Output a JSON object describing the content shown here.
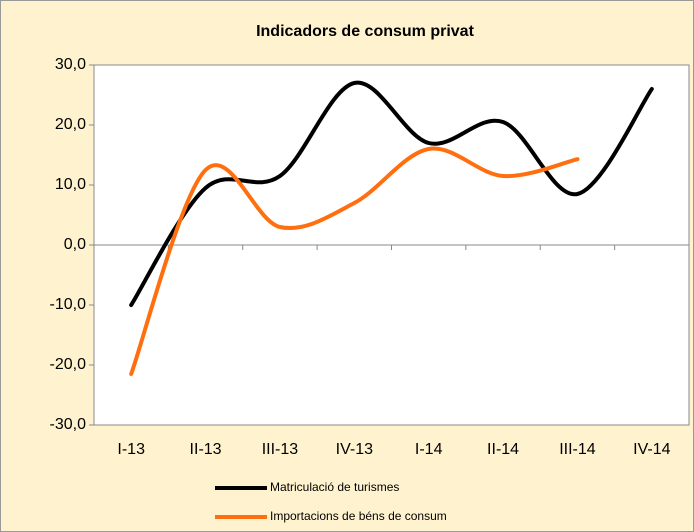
{
  "chart_data": {
    "type": "line",
    "title": "Indicadors de consum privat",
    "categories": [
      "I-13",
      "II-13",
      "III-13",
      "IV-13",
      "I-14",
      "II-14",
      "III-14",
      "IV-14"
    ],
    "series": [
      {
        "name": "Matriculació de turismes",
        "color": "#000000",
        "values": [
          -10,
          9.5,
          11.5,
          27,
          17,
          20.5,
          8.5,
          26
        ]
      },
      {
        "name": "Importacions de béns de consum",
        "color": "#ff6f0f",
        "values": [
          -21.5,
          12.5,
          3,
          7,
          16,
          11.5,
          14.3,
          null
        ]
      }
    ],
    "ylim": [
      -30,
      30
    ],
    "yticks": [
      {
        "value": -30,
        "label": "-30,0"
      },
      {
        "value": -20,
        "label": "-20,0"
      },
      {
        "value": -10,
        "label": "-10,0"
      },
      {
        "value": 0,
        "label": "0,0"
      },
      {
        "value": 10,
        "label": "10,0"
      },
      {
        "value": 20,
        "label": "20,0"
      },
      {
        "value": 30,
        "label": "30,0"
      }
    ],
    "smooth": true
  }
}
